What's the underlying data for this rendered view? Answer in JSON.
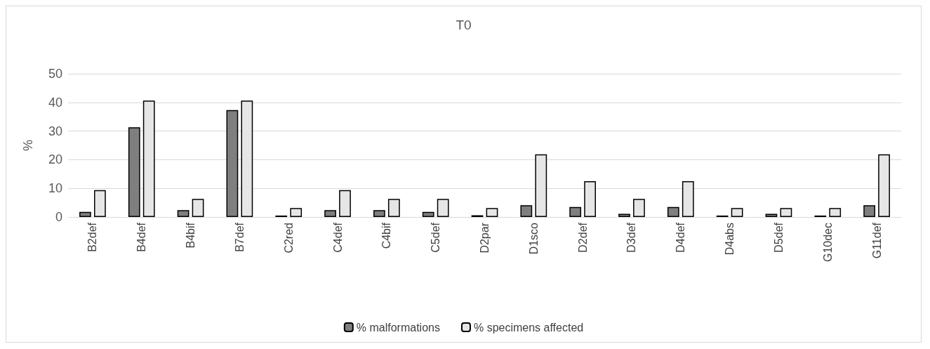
{
  "chart_data": {
    "type": "bar",
    "title": "T0",
    "ylabel": "%",
    "categories": [
      "B2def",
      "B4def",
      "B4bif",
      "B7def",
      "C2red",
      "C4def",
      "C4bif",
      "C5def",
      "D2par",
      "D1sco",
      "D2def",
      "D3def",
      "D4def",
      "D4abs",
      "D5def",
      "G10dec",
      "G11def"
    ],
    "series": [
      {
        "name": "% malformations",
        "color": "#7f7f7f",
        "values": [
          1.8,
          31.3,
          2.4,
          37.3,
          0.5,
          2.4,
          2.4,
          1.8,
          0.6,
          4.1,
          3.5,
          1.1,
          3.5,
          0.5,
          1.1,
          0.5,
          4.1
        ]
      },
      {
        "name": "% specimens affected",
        "color": "#e7e6e6",
        "values": [
          9.4,
          40.6,
          6.3,
          40.6,
          3.1,
          9.4,
          6.3,
          6.3,
          3.1,
          21.9,
          12.5,
          6.3,
          12.5,
          3.1,
          3.1,
          3.1,
          21.9
        ]
      }
    ],
    "ylim": [
      0,
      50
    ],
    "yticks": [
      0,
      10,
      20,
      30,
      40,
      50
    ],
    "grid": "y",
    "legend": "bottom"
  }
}
